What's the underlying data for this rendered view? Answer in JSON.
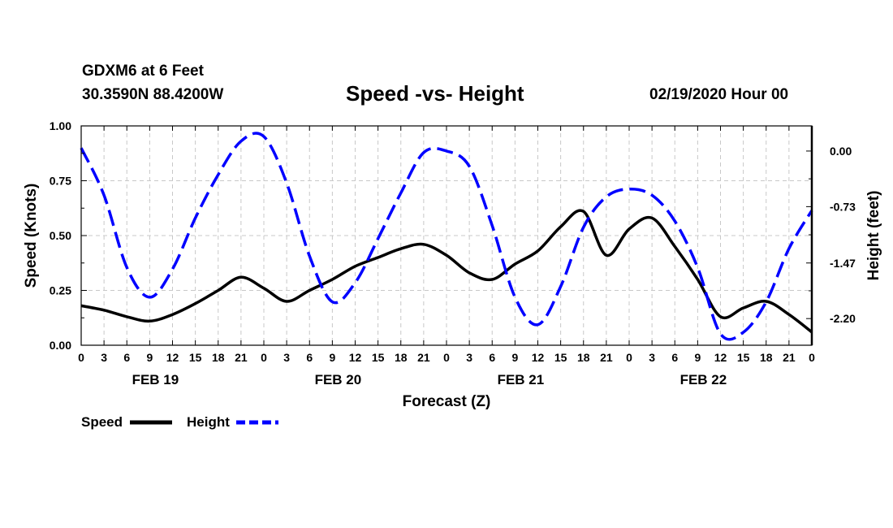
{
  "header": {
    "station": "GDXM6 at 6 Feet",
    "coords": "30.3590N 88.4200W",
    "title": "Speed -vs- Height",
    "datetime": "02/19/2020 Hour 00"
  },
  "chart_data": {
    "type": "line",
    "title": "Speed -vs- Height",
    "xlabel": "Forecast (Z)",
    "ylabel": "Speed (Knots)",
    "y2label": "Height (feet)",
    "x_unit": "hours",
    "xlim": [
      0,
      96
    ],
    "x_tick_step": 3,
    "x_tick_labels": [
      "0",
      "3",
      "6",
      "9",
      "12",
      "15",
      "18",
      "21",
      "0",
      "3",
      "6",
      "9",
      "12",
      "15",
      "18",
      "21",
      "0",
      "3",
      "6",
      "9",
      "12",
      "15",
      "18",
      "21",
      "0",
      "3",
      "6",
      "9",
      "12",
      "15",
      "18",
      "21",
      "0"
    ],
    "date_labels": [
      {
        "hour": 9.75,
        "label": "FEB 19"
      },
      {
        "hour": 33.75,
        "label": "FEB 20"
      },
      {
        "hour": 57.75,
        "label": "FEB 21"
      },
      {
        "hour": 81.75,
        "label": "FEB 22"
      }
    ],
    "ylim": [
      0,
      1
    ],
    "y_ticks": [
      "0.00",
      "0.25",
      "0.50",
      "0.75",
      "1.00"
    ],
    "y2lim": [
      -2.55,
      0.33
    ],
    "y2_ticks": [
      "0.00",
      "-0.73",
      "-1.47",
      "-2.20"
    ],
    "grid": true,
    "legend": [
      {
        "label": "Speed",
        "color": "#000000",
        "style": "solid"
      },
      {
        "label": "Height",
        "color": "#0000ff",
        "style": "dashed"
      }
    ],
    "series": [
      {
        "name": "Speed",
        "axis": "left",
        "color": "#000000",
        "x": [
          0,
          3,
          6,
          9,
          12,
          15,
          18,
          21,
          24,
          27,
          30,
          33,
          36,
          39,
          42,
          45,
          48,
          51,
          54,
          57,
          60,
          63,
          66,
          69,
          72,
          75,
          78,
          81,
          84,
          87,
          90,
          93,
          96
        ],
        "y": [
          0.18,
          0.16,
          0.13,
          0.11,
          0.14,
          0.19,
          0.25,
          0.31,
          0.26,
          0.2,
          0.25,
          0.3,
          0.36,
          0.4,
          0.44,
          0.46,
          0.41,
          0.33,
          0.3,
          0.37,
          0.43,
          0.54,
          0.61,
          0.41,
          0.53,
          0.58,
          0.45,
          0.3,
          0.13,
          0.17,
          0.2,
          0.14,
          0.06
        ]
      },
      {
        "name": "Height",
        "axis": "right",
        "color": "#0000ff",
        "x": [
          0,
          3,
          6,
          9,
          12,
          15,
          18,
          21,
          24,
          27,
          30,
          33,
          36,
          39,
          42,
          45,
          48,
          51,
          54,
          57,
          60,
          63,
          66,
          69,
          72,
          75,
          78,
          81,
          84,
          87,
          90,
          93,
          96
        ],
        "y": [
          0.04,
          -0.58,
          -1.53,
          -1.92,
          -1.55,
          -0.88,
          -0.31,
          0.13,
          0.19,
          -0.42,
          -1.38,
          -1.98,
          -1.73,
          -1.15,
          -0.55,
          -0.02,
          0.0,
          -0.2,
          -0.98,
          -1.92,
          -2.28,
          -1.78,
          -1.0,
          -0.6,
          -0.5,
          -0.58,
          -0.92,
          -1.53,
          -2.4,
          -2.38,
          -1.98,
          -1.28,
          -0.78
        ]
      }
    ]
  }
}
